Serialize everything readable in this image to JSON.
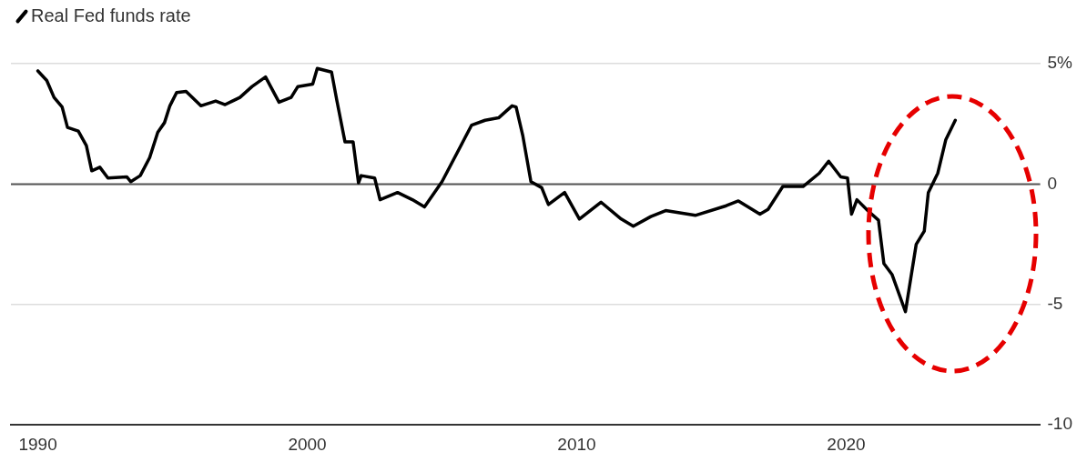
{
  "chart_data": {
    "type": "line",
    "legend": "top left",
    "grid": "y",
    "marker": "none",
    "line_style": "solid",
    "x": [
      1990.0,
      1990.33,
      1990.6,
      1990.9,
      1991.1,
      1991.5,
      1991.8,
      1992.0,
      1992.3,
      1992.6,
      1993.3,
      1993.45,
      1993.8,
      1994.15,
      1994.45,
      1994.7,
      1994.9,
      1995.15,
      1995.5,
      1996.05,
      1996.6,
      1996.95,
      1997.5,
      1997.95,
      1998.45,
      1998.95,
      1999.4,
      1999.65,
      2000.2,
      2000.37,
      2000.9,
      2001.1,
      2001.4,
      2001.7,
      2001.9,
      2002.0,
      2002.5,
      2002.7,
      2003.35,
      2003.9,
      2004.35,
      2005.0,
      2006.1,
      2006.6,
      2007.1,
      2007.6,
      2007.75,
      2008.0,
      2008.3,
      2008.7,
      2008.95,
      2009.55,
      2010.1,
      2010.9,
      2011.65,
      2012.1,
      2012.75,
      2013.3,
      2014.4,
      2015.55,
      2016.0,
      2016.8,
      2017.1,
      2017.65,
      2018.4,
      2019.0,
      2019.35,
      2019.8,
      2020.05,
      2020.2,
      2020.4,
      2020.8,
      2021.2,
      2021.4,
      2021.7,
      2022.2,
      2022.6,
      2022.9,
      2023.05,
      2023.4,
      2023.7,
      2024.05
    ],
    "series": [
      {
        "name": "Real Fed funds rate",
        "color": "#000000",
        "values": [
          4.7,
          4.3,
          3.6,
          3.2,
          2.35,
          2.2,
          1.6,
          0.55,
          0.7,
          0.25,
          0.3,
          0.1,
          0.35,
          1.1,
          2.15,
          2.55,
          3.25,
          3.8,
          3.85,
          3.25,
          3.45,
          3.3,
          3.6,
          4.05,
          4.45,
          3.4,
          3.6,
          4.05,
          4.15,
          4.8,
          4.65,
          3.45,
          1.75,
          1.75,
          0.05,
          0.35,
          0.25,
          -0.65,
          -0.35,
          -0.65,
          -0.95,
          0.1,
          2.45,
          2.65,
          2.75,
          3.25,
          3.2,
          2.0,
          0.1,
          -0.15,
          -0.85,
          -0.35,
          -1.45,
          -0.75,
          -1.45,
          -1.75,
          -1.35,
          -1.1,
          -1.3,
          -0.9,
          -0.7,
          -1.25,
          -1.05,
          -0.1,
          -0.1,
          0.45,
          0.95,
          0.3,
          0.25,
          -1.25,
          -0.65,
          -1.1,
          -1.5,
          -3.3,
          -3.75,
          -5.3,
          -2.5,
          -1.95,
          -0.35,
          0.45,
          1.85,
          2.65
        ]
      }
    ],
    "xlim": [
      1989,
      2027.2
    ],
    "xticks": [
      1990,
      2000,
      2010,
      2020
    ],
    "ylim": [
      -10,
      5
    ],
    "yticks": [
      {
        "value": 5,
        "label": "5%"
      },
      0,
      -5,
      -10
    ],
    "ref_lines": [
      {
        "axis": "y",
        "value": 0,
        "color": "#555555"
      }
    ]
  }
}
